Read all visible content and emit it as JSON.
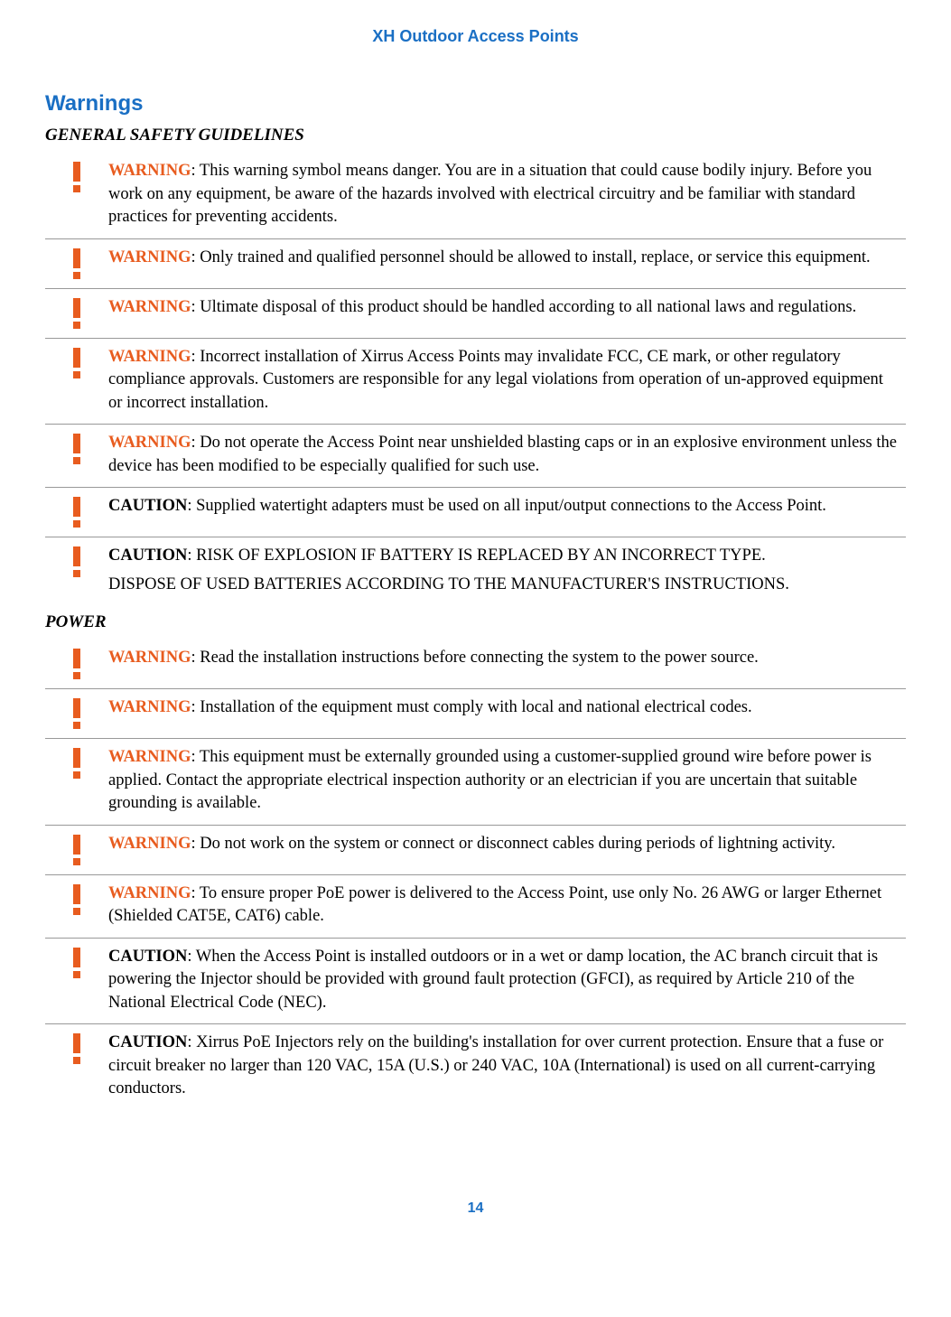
{
  "header": "XH Outdoor Access Points",
  "main_heading": "Warnings",
  "section_general": "GENERAL SAFETY GUIDELINES",
  "section_power": "POWER",
  "warning_label": "WARNING",
  "caution_label": "CAUTION",
  "general": {
    "w1": ": This warning symbol means danger. You are in a situation that could cause bodily injury. Before you work on any equipment, be aware of the hazards involved with electrical circuitry and be familiar with standard practices for preventing accidents.",
    "w2": ": Only trained and qualified personnel should be allowed to install, replace, or service this equipment.",
    "w3": ": Ultimate disposal of this product should be handled according to all national laws and regulations.",
    "w4": ": Incorrect installation of Xirrus Access Points may invalidate FCC, CE mark, or other regulatory compliance approvals. Customers are responsible for any legal violations from operation of un-approved equipment or incorrect installation.",
    "w5": ": Do not operate the Access Point near unshielded blasting caps or in an explosive environment unless the device has been modified to be especially qualified for such use.",
    "c1": ": Supplied watertight adapters must be used on all input/output connections to the Access Point.",
    "c2a": ": RISK OF EXPLOSION IF BATTERY IS REPLACED BY AN INCORRECT TYPE.",
    "c2b": "DISPOSE OF USED BATTERIES ACCORDING TO THE MANUFACTURER'S INSTRUCTIONS."
  },
  "power": {
    "w1": ": Read the installation instructions before connecting the system to the power source.",
    "w2": ": Installation of the equipment must comply with local and national electrical codes.",
    "w3": ": This equipment must be externally grounded using a customer-supplied ground wire before power is applied. Contact the appropriate electrical inspection authority or an electrician if you are uncertain that suitable grounding is available.",
    "w4": ": Do not work on the system or connect or disconnect cables during periods of lightning activity.",
    "w5": ": To ensure proper PoE power is delivered to the Access Point, use only No. 26 AWG or larger Ethernet (Shielded CAT5E, CAT6) cable.",
    "c1": ": When the Access Point is installed outdoors or in a wet or damp location, the AC branch circuit that is powering the Injector should be provided with ground fault protection (GFCI), as required by Article 210 of the National Electrical Code (NEC).",
    "c2": ": Xirrus PoE Injectors rely on the building's installation for over current protection. Ensure that a fuse or circuit breaker no larger than 120 VAC, 15A (U.S.) or 240 VAC, 10A (International) is used on all current-carrying conductors."
  },
  "page_number": "14",
  "colors": {
    "blue": "#1a6fc4",
    "orange": "#e85c1f",
    "text": "#000000",
    "border": "#999999",
    "background": "#ffffff"
  },
  "typography": {
    "header_fontsize": 18,
    "main_heading_fontsize": 24,
    "sub_heading_fontsize": 19,
    "body_fontsize": 18.5,
    "page_number_fontsize": 16
  }
}
